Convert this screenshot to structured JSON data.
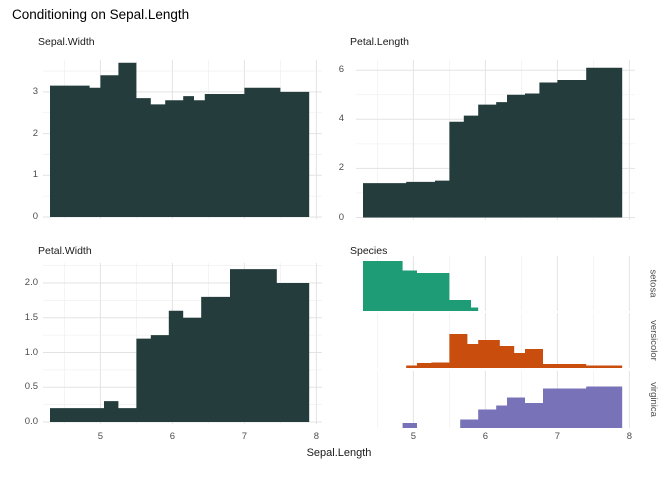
{
  "title": "Conditioning on Sepal.Length",
  "x_axis": {
    "title": "Sepal.Length",
    "tick_labels": [
      "5",
      "6",
      "7",
      "8"
    ],
    "tick_values": [
      5,
      6,
      7,
      8
    ],
    "minor_values": [
      4.5,
      5.5,
      6.5,
      7.5
    ],
    "range": [
      4.2,
      8.15
    ]
  },
  "colors": {
    "histogram_fill": "#243C3C",
    "setosa": "#1E9C76",
    "versicolor": "#C94D0C",
    "virginica": "#7873B8",
    "gridline_major": "#e3e3e3",
    "gridline_minor": "#f1f1f1",
    "tick_label": "#4d4d4d"
  },
  "chart_data": [
    {
      "type": "step-area",
      "name": "Sepal.Width",
      "x_variable": "Sepal.Length",
      "fill": "#243C3C",
      "ylim": [
        0,
        3.8
      ],
      "y_axis": {
        "tick_labels": [
          "0",
          "1",
          "2",
          "3"
        ],
        "tick_values": [
          0,
          1,
          2,
          3
        ],
        "minor_values": [
          0.5,
          1.5,
          2.5,
          3.5
        ]
      },
      "bin_edges": [
        4.3,
        4.85,
        5.0,
        5.25,
        5.5,
        5.7,
        5.9,
        6.15,
        6.3,
        6.45,
        7.0,
        7.5,
        7.9
      ],
      "values": [
        3.15,
        3.1,
        3.4,
        3.7,
        2.85,
        2.7,
        2.8,
        2.9,
        2.8,
        2.95,
        3.1,
        3.0
      ]
    },
    {
      "type": "step-area",
      "name": "Petal.Length",
      "x_variable": "Sepal.Length",
      "fill": "#243C3C",
      "ylim": [
        0,
        6.4
      ],
      "y_axis": {
        "tick_labels": [
          "0",
          "2",
          "4",
          "6"
        ],
        "tick_values": [
          0,
          2,
          4,
          6
        ],
        "minor_values": [
          1,
          3,
          5
        ]
      },
      "bin_edges": [
        4.3,
        4.9,
        5.3,
        5.5,
        5.7,
        5.9,
        6.15,
        6.3,
        6.55,
        6.75,
        7.0,
        7.4,
        7.9
      ],
      "values": [
        1.4,
        1.45,
        1.5,
        3.9,
        4.15,
        4.6,
        4.7,
        5.0,
        5.05,
        5.5,
        5.6,
        6.1
      ]
    },
    {
      "type": "step-area",
      "name": "Petal.Width",
      "x_variable": "Sepal.Length",
      "fill": "#243C3C",
      "ylim": [
        0,
        2.3
      ],
      "y_axis": {
        "tick_labels": [
          "0.0",
          "0.5",
          "1.0",
          "1.5",
          "2.0"
        ],
        "tick_values": [
          0,
          0.5,
          1,
          1.5,
          2
        ],
        "minor_values": [
          0.25,
          0.75,
          1.25,
          1.75,
          2.25
        ]
      },
      "bin_edges": [
        4.3,
        5.05,
        5.25,
        5.5,
        5.7,
        5.95,
        6.15,
        6.4,
        6.8,
        7.45,
        7.9
      ],
      "values": [
        0.2,
        0.3,
        0.2,
        1.2,
        1.25,
        1.6,
        1.5,
        1.8,
        2.2,
        2.0
      ]
    },
    {
      "type": "ridge-histograms",
      "name": "Species",
      "x_variable": "Sepal.Length",
      "ridges": [
        {
          "name": "setosa",
          "color": "#1E9C76",
          "bin_edges": [
            4.3,
            4.85,
            5.05,
            5.5,
            5.8,
            5.9
          ],
          "rel_heights": [
            1.0,
            0.81,
            0.76,
            0.22,
            0.07
          ]
        },
        {
          "name": "versicolor",
          "color": "#C94D0C",
          "bin_edges": [
            4.9,
            5.05,
            5.25,
            5.5,
            5.75,
            5.9,
            6.2,
            6.4,
            6.55,
            6.8,
            7.4,
            7.9
          ],
          "rel_heights": [
            0.05,
            0.1,
            0.11,
            0.68,
            0.48,
            0.56,
            0.44,
            0.3,
            0.38,
            0.08,
            0.05
          ]
        },
        {
          "name": "virginica",
          "color": "#7873B8",
          "bin_edges": [
            4.85,
            5.05,
            5.65,
            5.9,
            6.15,
            6.3,
            6.55,
            6.8,
            7.4,
            7.9
          ],
          "rel_heights": [
            0.1,
            0,
            0.17,
            0.37,
            0.45,
            0.61,
            0.5,
            0.79,
            0.83
          ]
        }
      ]
    }
  ]
}
